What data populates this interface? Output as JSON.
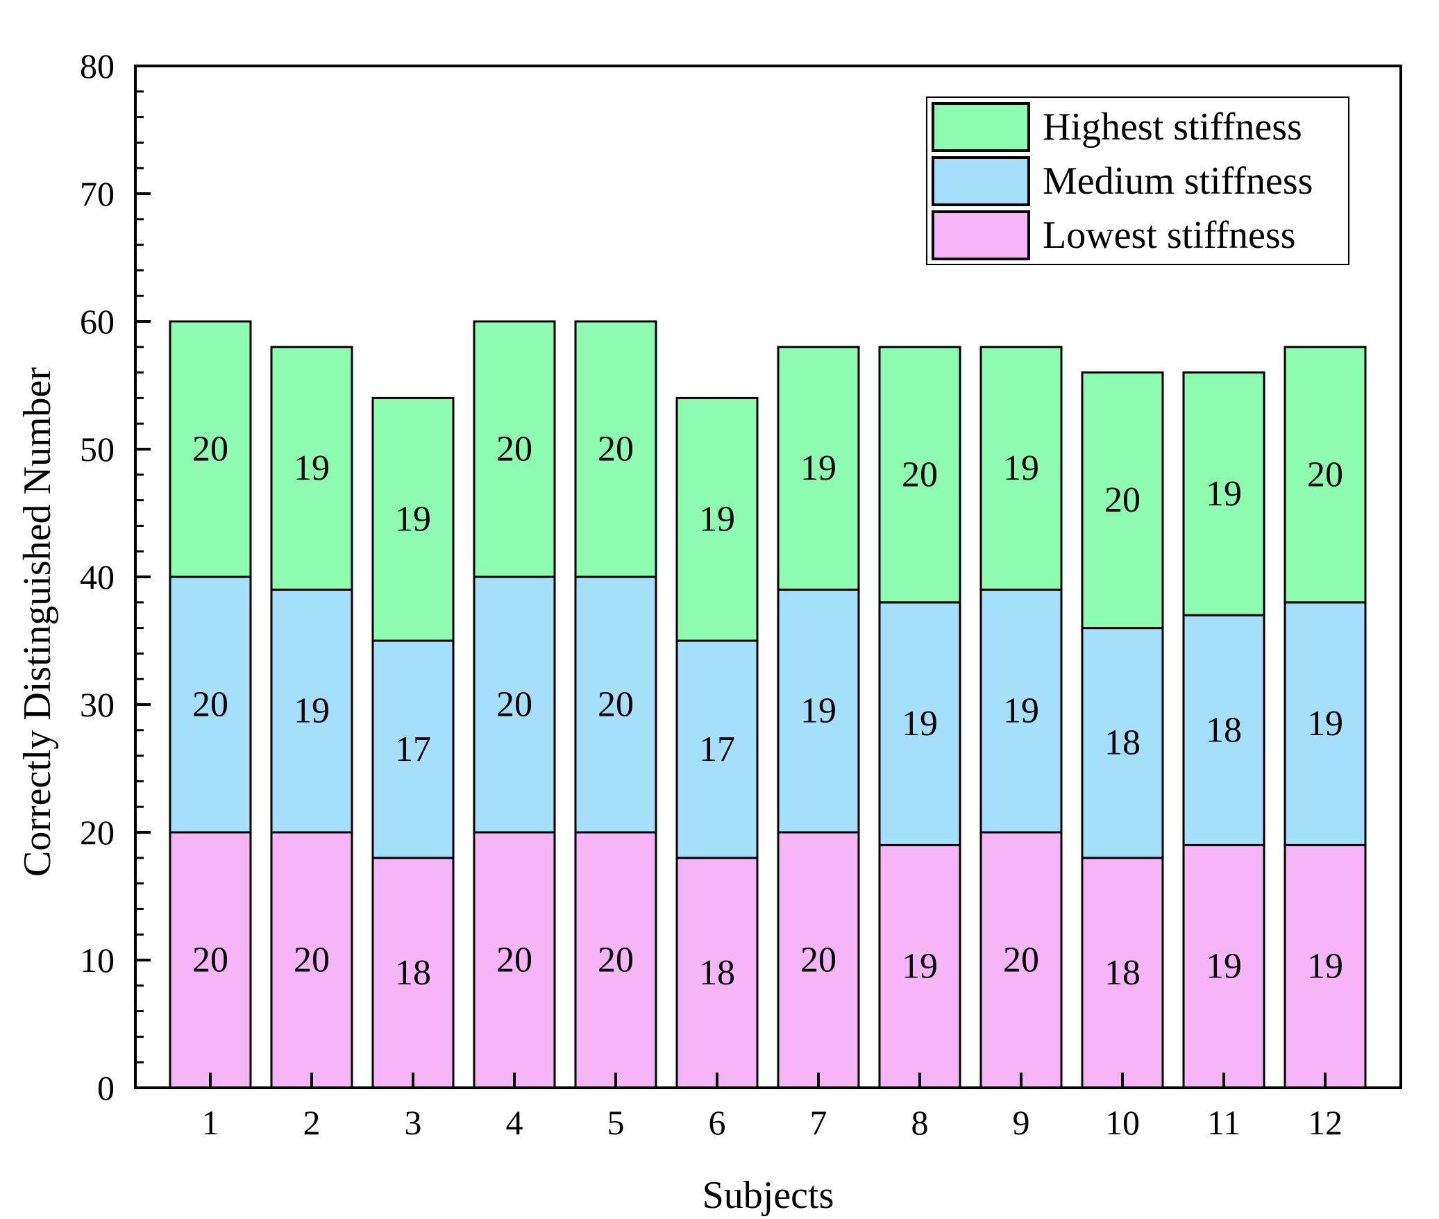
{
  "chart_data": {
    "type": "bar",
    "stacked": true,
    "title": "",
    "xlabel": "Subjects",
    "ylabel": "Correctly Distinguished Number",
    "ylim": [
      0,
      80
    ],
    "yticks": [
      0,
      10,
      20,
      30,
      40,
      50,
      60,
      70,
      80
    ],
    "y_tick_labels": [
      "0",
      "10",
      "20",
      "30",
      "40",
      "50",
      "60",
      "70",
      "80"
    ],
    "categories": [
      "1",
      "2",
      "3",
      "4",
      "5",
      "6",
      "7",
      "8",
      "9",
      "10",
      "11",
      "12"
    ],
    "series": [
      {
        "name": "Lowest stiffness",
        "color": "#f5b5f7",
        "values": [
          20,
          20,
          18,
          20,
          20,
          18,
          20,
          19,
          20,
          18,
          19,
          19
        ]
      },
      {
        "name": "Medium stiffness",
        "color": "#a5dffb",
        "values": [
          20,
          19,
          17,
          20,
          20,
          17,
          19,
          19,
          19,
          18,
          18,
          19
        ]
      },
      {
        "name": "Highest stiffness",
        "color": "#8dfcb0",
        "values": [
          20,
          19,
          19,
          20,
          20,
          19,
          19,
          20,
          19,
          20,
          19,
          20
        ]
      }
    ],
    "legend": {
      "position": "top-right",
      "order": [
        "Highest stiffness",
        "Medium stiffness",
        "Lowest stiffness"
      ]
    },
    "grid": false
  }
}
